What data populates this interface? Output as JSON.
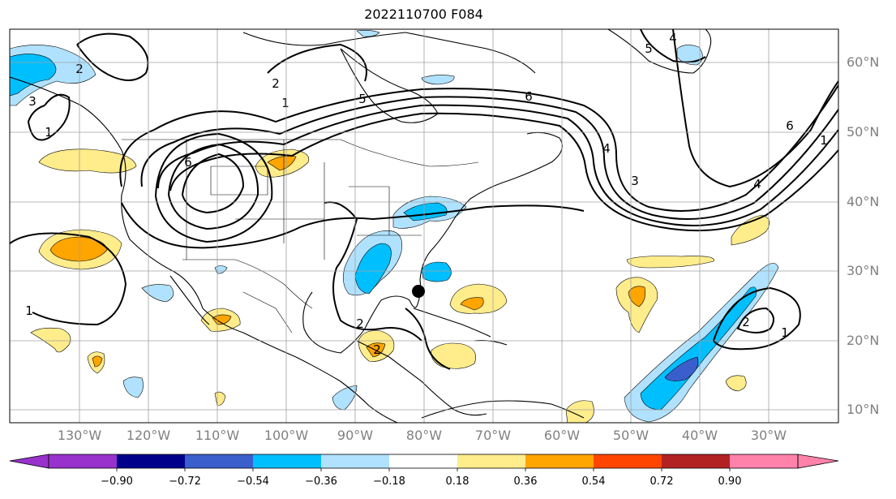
{
  "title": "2022110700 F084",
  "lat_labels": [
    "60°N",
    "50°N",
    "40°N",
    "30°N",
    "20°N",
    "10°N"
  ],
  "lon_labels": [
    "130°W",
    "120°W",
    "110°W",
    "100°W",
    "90°W",
    "80°W",
    "70°W",
    "60°W",
    "50°W",
    "40°W",
    "30°W"
  ],
  "colorbar": {
    "colors": [
      "#9932cc",
      "#00008b",
      "#3a5fcd",
      "#00bfff",
      "#b0e2ff",
      "#ffffff",
      "#ffec8b",
      "#ffa500",
      "#ff4500",
      "#b22222",
      "#ff82ab"
    ],
    "ticks": [
      "−0.90",
      "−0.72",
      "−0.54",
      "−0.36",
      "−0.18",
      "0.18",
      "0.36",
      "0.54",
      "0.72",
      "0.90"
    ]
  },
  "contour_labels": [
    "4",
    "5",
    "6",
    "2",
    "3",
    "1",
    "5",
    "6",
    "4",
    "3",
    "6",
    "4",
    "1",
    "2",
    "1",
    "2",
    "1",
    "2",
    "2",
    "1"
  ],
  "marker": {
    "name": "storm-center",
    "lat": 27.3,
    "lon": -80.2
  }
}
